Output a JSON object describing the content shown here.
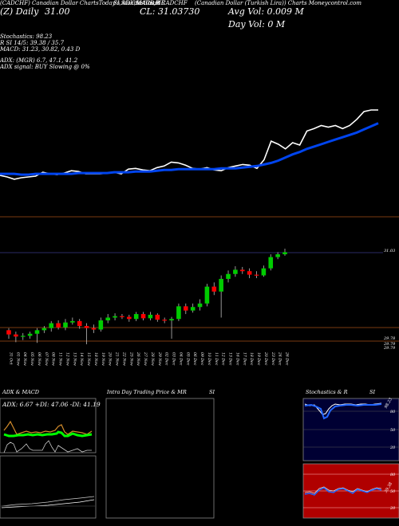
{
  "header": {
    "line1": [
      "(CADCHF) Canadian Dollar ChartsToday's ADX,MACD,B",
      "SI,Stochastics,MR",
      "SI Chart CADCHF",
      "(Canadian Dollar (Turkish Lira)) Charts Moneycontrol.com"
    ],
    "today_label": "(Z) Daily",
    "today_value": "31.00",
    "close_label": "CL: 31.03730",
    "avg_vol": "Avg Vol: 0.009 M",
    "day_vol": "Day Vol: 0   M",
    "stochastics": "Stochastics: 98.23",
    "si_line": "R          SI 14/5: 39.38 / 35.7",
    "macd_line": "MACD: 31.23, 30.82, 0.43 D",
    "adx_line": "ADX:                          (MGR) 6.7, 47.1, 41.2",
    "adx_signal": "ADX   signal:                        BUY Slowing @ 0%"
  },
  "price_labels": {
    "last": "31.03",
    "low1": "29.78",
    "low2": "29.79",
    "low3": "29.79"
  },
  "dates": [
    "31 Oct",
    "01 Nov",
    "04 Nov",
    "05 Nov",
    "06 Nov",
    "07 Nov",
    "08 Nov",
    "11 Nov",
    "12 Nov",
    "13 Nov",
    "14 Nov",
    "15 Nov",
    "18 Nov",
    "19 Nov",
    "20 Nov",
    "21 Nov",
    "22 Nov",
    "25 Nov",
    "26 Nov",
    "27 Nov",
    "28 Nov",
    "29 Nov",
    "02 Dec",
    "03 Dec",
    "04 Dec",
    "05 Dec",
    "06 Dec",
    "09 Dec",
    "10 Dec",
    "11 Dec",
    "12 Dec",
    "13 Dec",
    "16 Dec",
    "17 Dec",
    "18 Dec",
    "19 Dec",
    "20 Dec",
    "23 Dec",
    "24 Dec",
    "26 Dec"
  ],
  "candles": [
    {
      "o": 29.92,
      "c": 29.86,
      "h": 29.95,
      "l": 29.8
    },
    {
      "o": 29.86,
      "c": 29.83,
      "h": 29.9,
      "l": 29.75
    },
    {
      "o": 29.83,
      "c": 29.84,
      "h": 29.88,
      "l": 29.78
    },
    {
      "o": 29.84,
      "c": 29.87,
      "h": 29.9,
      "l": 29.8
    },
    {
      "o": 29.87,
      "c": 29.92,
      "h": 29.95,
      "l": 29.74
    },
    {
      "o": 29.92,
      "c": 29.95,
      "h": 29.98,
      "l": 29.88
    },
    {
      "o": 29.95,
      "c": 30.02,
      "h": 30.05,
      "l": 29.9
    },
    {
      "o": 30.02,
      "c": 29.96,
      "h": 30.06,
      "l": 29.93
    },
    {
      "o": 29.96,
      "c": 30.03,
      "h": 30.08,
      "l": 29.92
    },
    {
      "o": 30.03,
      "c": 30.05,
      "h": 30.1,
      "l": 30.0
    },
    {
      "o": 30.05,
      "c": 29.98,
      "h": 30.08,
      "l": 29.94
    },
    {
      "o": 29.98,
      "c": 29.95,
      "h": 30.02,
      "l": 29.72
    },
    {
      "o": 29.95,
      "c": 29.93,
      "h": 30.0,
      "l": 29.88
    },
    {
      "o": 29.93,
      "c": 30.06,
      "h": 30.1,
      "l": 29.9
    },
    {
      "o": 30.06,
      "c": 30.1,
      "h": 30.15,
      "l": 30.02
    },
    {
      "o": 30.1,
      "c": 30.12,
      "h": 30.16,
      "l": 30.06
    },
    {
      "o": 30.12,
      "c": 30.11,
      "h": 30.15,
      "l": 30.08
    },
    {
      "o": 30.11,
      "c": 30.08,
      "h": 30.14,
      "l": 30.04
    },
    {
      "o": 30.08,
      "c": 30.15,
      "h": 30.18,
      "l": 30.05
    },
    {
      "o": 30.15,
      "c": 30.09,
      "h": 30.18,
      "l": 30.06
    },
    {
      "o": 30.09,
      "c": 30.14,
      "h": 30.18,
      "l": 30.06
    },
    {
      "o": 30.14,
      "c": 30.07,
      "h": 30.16,
      "l": 30.04
    },
    {
      "o": 30.07,
      "c": 30.06,
      "h": 30.1,
      "l": 30.02
    },
    {
      "o": 30.06,
      "c": 30.08,
      "h": 30.11,
      "l": 29.8
    },
    {
      "o": 30.08,
      "c": 30.26,
      "h": 30.3,
      "l": 30.05
    },
    {
      "o": 30.26,
      "c": 30.2,
      "h": 30.3,
      "l": 30.15
    },
    {
      "o": 30.2,
      "c": 30.25,
      "h": 30.3,
      "l": 30.17
    },
    {
      "o": 30.25,
      "c": 30.3,
      "h": 30.36,
      "l": 30.2
    },
    {
      "o": 30.3,
      "c": 30.54,
      "h": 30.58,
      "l": 30.26
    },
    {
      "o": 30.54,
      "c": 30.47,
      "h": 30.6,
      "l": 30.42
    },
    {
      "o": 30.47,
      "c": 30.65,
      "h": 30.7,
      "l": 30.1
    },
    {
      "o": 30.65,
      "c": 30.72,
      "h": 30.77,
      "l": 30.6
    },
    {
      "o": 30.72,
      "c": 30.78,
      "h": 30.83,
      "l": 30.68
    },
    {
      "o": 30.78,
      "c": 30.76,
      "h": 30.82,
      "l": 30.72
    },
    {
      "o": 30.76,
      "c": 30.71,
      "h": 30.8,
      "l": 30.66
    },
    {
      "o": 30.71,
      "c": 30.7,
      "h": 30.76,
      "l": 30.66
    },
    {
      "o": 30.7,
      "c": 30.8,
      "h": 30.84,
      "l": 30.68
    },
    {
      "o": 30.8,
      "c": 30.96,
      "h": 31.0,
      "l": 30.77
    },
    {
      "o": 30.96,
      "c": 31.0,
      "h": 31.03,
      "l": 30.93
    },
    {
      "o": 31.0,
      "c": 31.03,
      "h": 31.08,
      "l": 30.98
    }
  ],
  "price_trend": [
    29.98,
    29.96,
    29.93,
    29.95,
    29.96,
    29.97,
    30.02,
    30.0,
    29.99,
    30.01,
    30.04,
    30.03,
    30.0,
    30.0,
    30.0,
    30.01,
    30.02,
    30.0,
    30.06,
    30.07,
    30.05,
    30.04,
    30.08,
    30.1,
    30.15,
    30.14,
    30.11,
    30.07,
    30.06,
    30.08,
    30.05,
    30.04,
    30.08,
    30.1,
    30.12,
    30.11,
    30.07,
    30.18,
    30.42,
    30.38,
    30.32,
    30.4,
    30.37,
    30.55,
    30.58,
    30.62,
    30.6,
    30.62,
    30.58,
    30.62,
    30.7,
    30.8,
    30.82,
    30.82
  ],
  "ma_trend": [
    30.0,
    30.0,
    30.0,
    29.99,
    29.99,
    30.0,
    30.0,
    30.0,
    30.0,
    30.0,
    30.0,
    30.01,
    30.01,
    30.01,
    30.01,
    30.01,
    30.02,
    30.02,
    30.02,
    30.03,
    30.03,
    30.03,
    30.04,
    30.05,
    30.05,
    30.06,
    30.06,
    30.06,
    30.06,
    30.06,
    30.06,
    30.07,
    30.07,
    30.07,
    30.08,
    30.09,
    30.1,
    30.12,
    30.14,
    30.17,
    30.21,
    30.25,
    30.28,
    30.32,
    30.35,
    30.38,
    30.41,
    30.44,
    30.47,
    30.5,
    30.53,
    30.57,
    30.61,
    30.65
  ],
  "panels": {
    "adx_title": "ADX  & MACD",
    "adx_values": "ADX: 6.67  +DI: 47.06  -DI: 41.19",
    "intraday_title": "Intra  Day Trading Price  & MR",
    "intraday_si": "SI",
    "stoch_title": "Stochastics & R",
    "stoch_si": "SI",
    "stoch_labels": [
      "80",
      "50",
      "20"
    ],
    "stoch_value": "98.23",
    "rsi_labels": [
      "80",
      "50",
      "20"
    ],
    "rsi_value": "39.38"
  },
  "colors": {
    "up": "#00cc00",
    "down": "#ff0000",
    "ma": "#0044ee",
    "price": "#ffffff",
    "divider": "#7a3a10",
    "rsi_bg": "#b00000",
    "stoch_bg": "#000033"
  }
}
